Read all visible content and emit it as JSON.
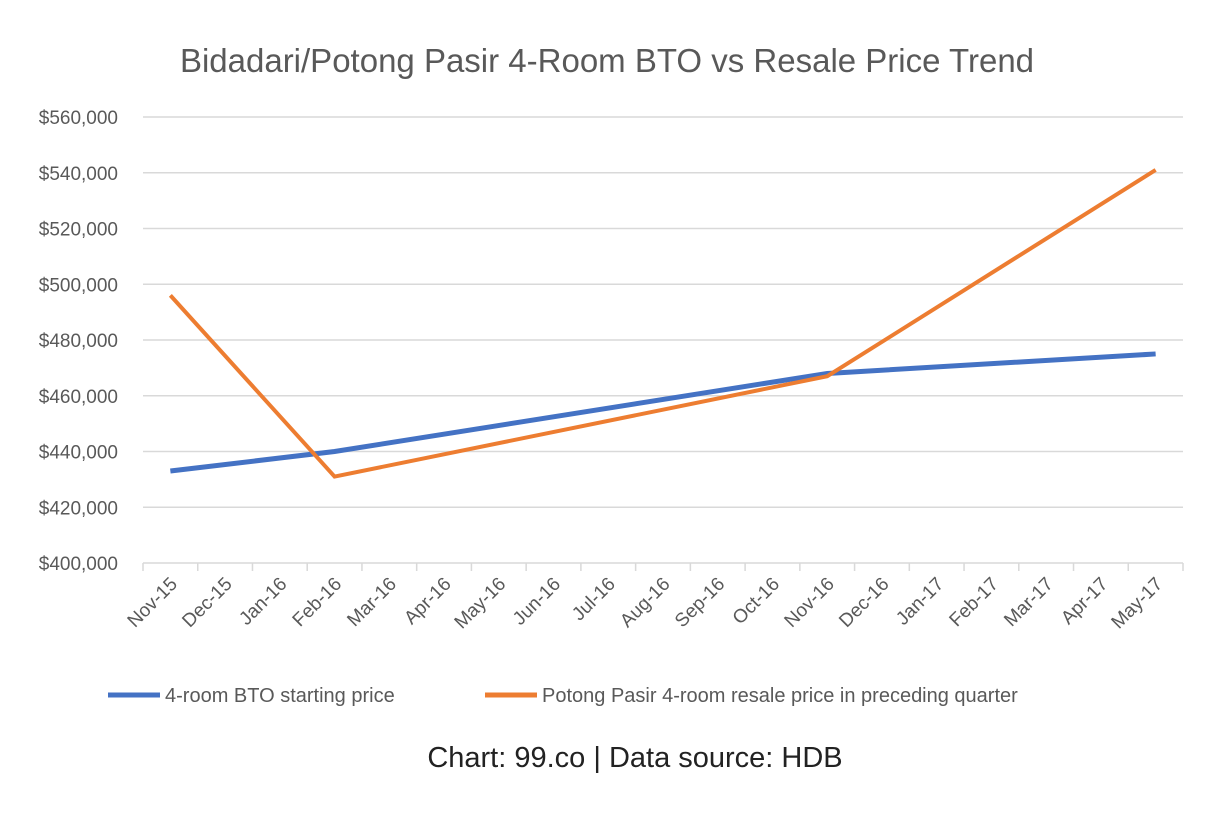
{
  "chart_data": {
    "type": "line",
    "title": "Bidadari/Potong Pasir 4-Room BTO vs Resale Price Trend",
    "xlabel": "",
    "ylabel": "",
    "categories": [
      "Nov-15",
      "Dec-15",
      "Jan-16",
      "Feb-16",
      "Mar-16",
      "Apr-16",
      "May-16",
      "Jun-16",
      "Jul-16",
      "Aug-16",
      "Sep-16",
      "Oct-16",
      "Nov-16",
      "Dec-16",
      "Jan-17",
      "Feb-17",
      "Mar-17",
      "Apr-17",
      "May-17"
    ],
    "ylim": [
      400000,
      560000
    ],
    "yticks": [
      400000,
      420000,
      440000,
      460000,
      480000,
      500000,
      520000,
      540000,
      560000
    ],
    "ytick_labels": [
      "$400,000",
      "$420,000",
      "$440,000",
      "$460,000",
      "$480,000",
      "$500,000",
      "$520,000",
      "$540,000",
      "$560,000"
    ],
    "grid": true,
    "legend_position": "bottom",
    "series": [
      {
        "name": "4-room BTO starting price",
        "color": "#4472C4",
        "points": [
          {
            "x": "Nov-15",
            "y": 433000
          },
          {
            "x": "Feb-16",
            "y": 440000
          },
          {
            "x": "Nov-16",
            "y": 468000
          },
          {
            "x": "May-17",
            "y": 475000
          }
        ]
      },
      {
        "name": "Potong Pasir 4-room resale price in preceding quarter",
        "color": "#ED7D31",
        "points": [
          {
            "x": "Nov-15",
            "y": 496000
          },
          {
            "x": "Feb-16",
            "y": 431000
          },
          {
            "x": "Nov-16",
            "y": 467000
          },
          {
            "x": "May-17",
            "y": 541000
          }
        ]
      }
    ]
  },
  "caption": "Chart: 99.co | Data source: HDB"
}
